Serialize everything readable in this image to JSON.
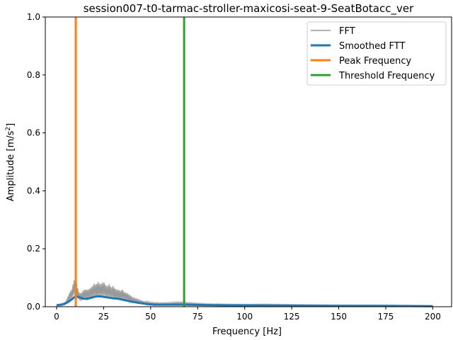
{
  "chart_data": {
    "type": "line",
    "title": "session007-t0-tarmac-stroller-maxicosi-seat-9-SeatBotacc_ver",
    "xlabel": "Frequency [Hz]",
    "ylabel_main": "Amplitude [m/s",
    "ylabel_sup": "2",
    "ylabel_end": "]",
    "xlim": [
      -6,
      210
    ],
    "ylim": [
      0,
      1.0
    ],
    "xticks": [
      0,
      25,
      50,
      75,
      100,
      125,
      150,
      175,
      200
    ],
    "xtick_labels": [
      "0",
      "25",
      "50",
      "75",
      "100",
      "125",
      "150",
      "175",
      "200"
    ],
    "yticks": [
      0.0,
      0.2,
      0.4,
      0.6,
      0.8,
      1.0
    ],
    "ytick_labels": [
      "0.0",
      "0.2",
      "0.4",
      "0.6",
      "0.8",
      "1.0"
    ],
    "legend_position": "top-right",
    "series": [
      {
        "name": "FFT",
        "color": "#999999",
        "kind": "fft",
        "points": [
          [
            0,
            0.008
          ],
          [
            2,
            0.005
          ],
          [
            4,
            0.012
          ],
          [
            5,
            0.02
          ],
          [
            6,
            0.035
          ],
          [
            7,
            0.05
          ],
          [
            8,
            0.06
          ],
          [
            9,
            0.085
          ],
          [
            10,
            0.103
          ],
          [
            11,
            0.07
          ],
          [
            12,
            0.05
          ],
          [
            13,
            0.045
          ],
          [
            14,
            0.055
          ],
          [
            15,
            0.06
          ],
          [
            16,
            0.058
          ],
          [
            17,
            0.06
          ],
          [
            18,
            0.065
          ],
          [
            19,
            0.07
          ],
          [
            20,
            0.08
          ],
          [
            21,
            0.075
          ],
          [
            22,
            0.085
          ],
          [
            23,
            0.078
          ],
          [
            24,
            0.08
          ],
          [
            25,
            0.086
          ],
          [
            26,
            0.075
          ],
          [
            27,
            0.07
          ],
          [
            28,
            0.078
          ],
          [
            29,
            0.065
          ],
          [
            30,
            0.072
          ],
          [
            31,
            0.062
          ],
          [
            32,
            0.06
          ],
          [
            33,
            0.058
          ],
          [
            34,
            0.055
          ],
          [
            35,
            0.06
          ],
          [
            36,
            0.05
          ],
          [
            37,
            0.048
          ],
          [
            38,
            0.045
          ],
          [
            39,
            0.04
          ],
          [
            40,
            0.035
          ],
          [
            42,
            0.03
          ],
          [
            44,
            0.025
          ],
          [
            46,
            0.02
          ],
          [
            48,
            0.018
          ],
          [
            50,
            0.015
          ],
          [
            55,
            0.013
          ],
          [
            60,
            0.014
          ],
          [
            65,
            0.016
          ],
          [
            68,
            0.015
          ],
          [
            70,
            0.014
          ],
          [
            75,
            0.012
          ],
          [
            80,
            0.01
          ],
          [
            90,
            0.009
          ],
          [
            100,
            0.008
          ],
          [
            110,
            0.009
          ],
          [
            120,
            0.008
          ],
          [
            130,
            0.007
          ],
          [
            150,
            0.006
          ],
          [
            175,
            0.005
          ],
          [
            200,
            0.004
          ]
        ]
      },
      {
        "name": "Smoothed FTT",
        "color": "#1f77b4",
        "kind": "line",
        "points": [
          [
            0,
            0.005
          ],
          [
            3,
            0.008
          ],
          [
            5,
            0.012
          ],
          [
            7,
            0.02
          ],
          [
            9,
            0.03
          ],
          [
            10,
            0.036
          ],
          [
            12,
            0.033
          ],
          [
            14,
            0.028
          ],
          [
            16,
            0.027
          ],
          [
            18,
            0.03
          ],
          [
            20,
            0.034
          ],
          [
            22,
            0.036
          ],
          [
            24,
            0.035
          ],
          [
            26,
            0.033
          ],
          [
            28,
            0.031
          ],
          [
            30,
            0.029
          ],
          [
            32,
            0.028
          ],
          [
            34,
            0.026
          ],
          [
            36,
            0.023
          ],
          [
            38,
            0.02
          ],
          [
            40,
            0.017
          ],
          [
            44,
            0.013
          ],
          [
            48,
            0.009
          ],
          [
            52,
            0.007
          ],
          [
            60,
            0.007
          ],
          [
            68,
            0.007
          ],
          [
            75,
            0.006
          ],
          [
            90,
            0.005
          ],
          [
            100,
            0.005
          ],
          [
            125,
            0.004
          ],
          [
            150,
            0.003
          ],
          [
            175,
            0.003
          ],
          [
            200,
            0.002
          ]
        ]
      },
      {
        "name": "Peak Frequency",
        "color": "#ff7f0e",
        "kind": "vline",
        "x": 10.2
      },
      {
        "name": "Threshold Frequency",
        "color": "#2ca02c",
        "kind": "vline",
        "x": 67.8
      }
    ]
  }
}
